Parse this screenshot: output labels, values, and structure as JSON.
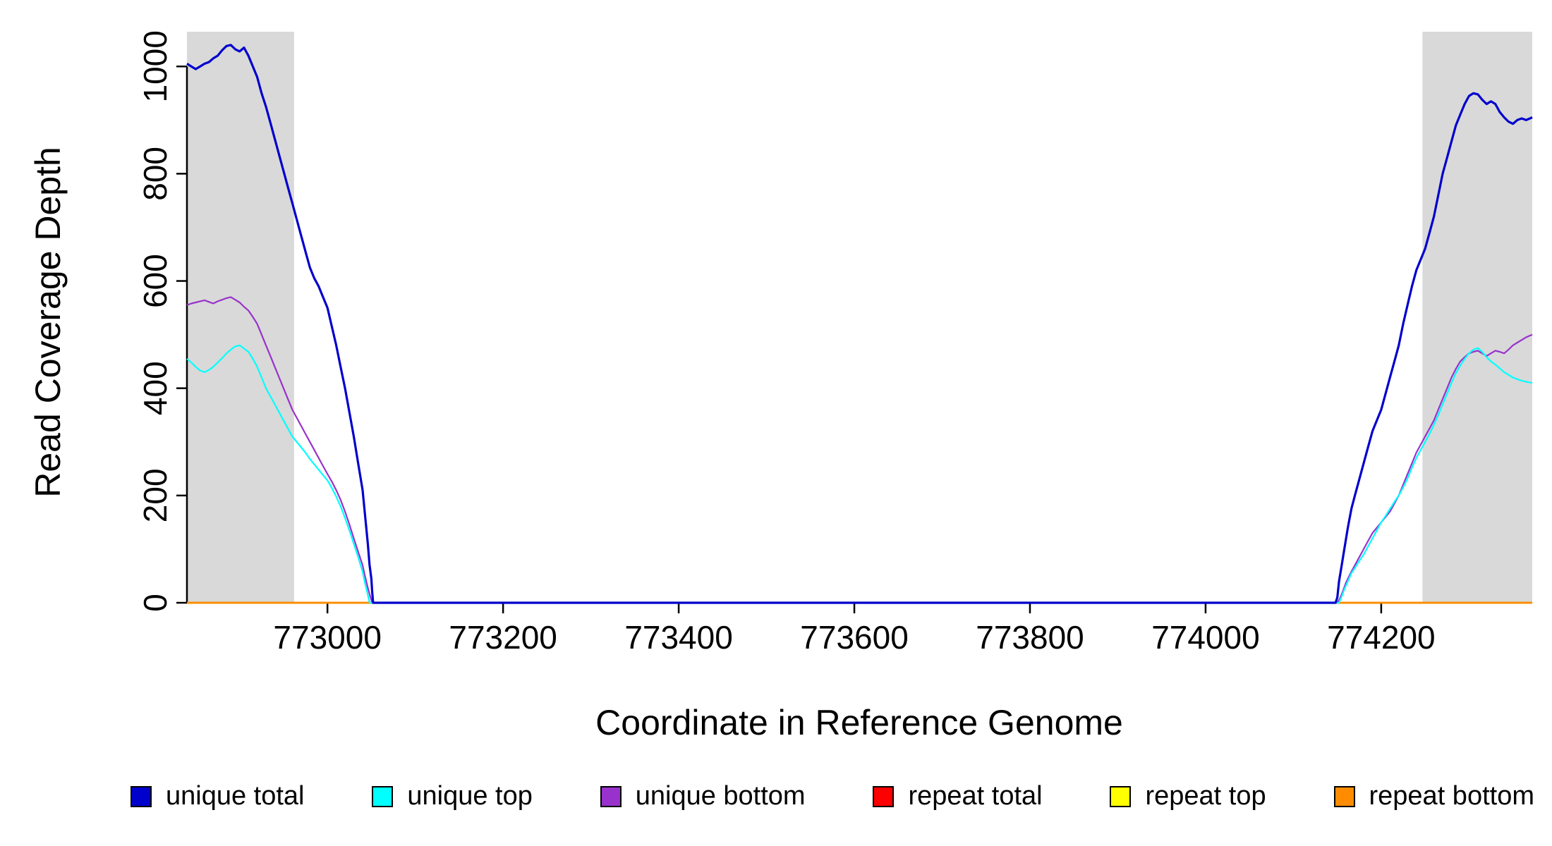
{
  "chart_data": {
    "type": "line",
    "title": "",
    "xlabel": "Coordinate in Reference Genome",
    "ylabel": "Read Coverage Depth",
    "xlim": [
      772840,
      774372
    ],
    "ylim": [
      0,
      1045
    ],
    "xticks": [
      773000,
      773200,
      773400,
      773600,
      773800,
      774000,
      774200
    ],
    "yticks": [
      0,
      200,
      400,
      600,
      800,
      1000
    ],
    "grid": false,
    "legend_position": "bottom",
    "background_color": "#ffffff",
    "shade_color": "#d9d9d9",
    "shaded_regions": [
      {
        "x0": 772840,
        "x1": 772962
      },
      {
        "x0": 774247,
        "x1": 774372
      }
    ],
    "series": [
      {
        "name": "repeat total",
        "color": "#ff0000",
        "width": 2.5,
        "points": [
          [
            772840,
            0
          ],
          [
            774372,
            0
          ]
        ]
      },
      {
        "name": "repeat top",
        "color": "#ffff00",
        "width": 2.5,
        "points": [
          [
            772840,
            0
          ],
          [
            774372,
            0
          ]
        ]
      },
      {
        "name": "repeat bottom",
        "color": "#ff8c00",
        "width": 2.5,
        "points": [
          [
            772840,
            0
          ],
          [
            774372,
            0
          ]
        ]
      },
      {
        "name": "unique bottom",
        "color": "#9932cc",
        "width": 2.2,
        "points": [
          [
            772840,
            555
          ],
          [
            772845,
            558
          ],
          [
            772850,
            560
          ],
          [
            772855,
            562
          ],
          [
            772860,
            564
          ],
          [
            772865,
            561
          ],
          [
            772870,
            558
          ],
          [
            772875,
            562
          ],
          [
            772880,
            565
          ],
          [
            772885,
            568
          ],
          [
            772890,
            570
          ],
          [
            772895,
            565
          ],
          [
            772900,
            560
          ],
          [
            772905,
            552
          ],
          [
            772910,
            545
          ],
          [
            772915,
            533
          ],
          [
            772920,
            520
          ],
          [
            772925,
            500
          ],
          [
            772930,
            480
          ],
          [
            772935,
            460
          ],
          [
            772940,
            440
          ],
          [
            772945,
            420
          ],
          [
            772950,
            400
          ],
          [
            772955,
            380
          ],
          [
            772960,
            360
          ],
          [
            772965,
            345
          ],
          [
            772970,
            330
          ],
          [
            772975,
            315
          ],
          [
            772980,
            300
          ],
          [
            772985,
            285
          ],
          [
            772990,
            270
          ],
          [
            772995,
            255
          ],
          [
            773000,
            240
          ],
          [
            773005,
            226
          ],
          [
            773010,
            210
          ],
          [
            773015,
            192
          ],
          [
            773020,
            170
          ],
          [
            773025,
            146
          ],
          [
            773030,
            120
          ],
          [
            773035,
            95
          ],
          [
            773040,
            70
          ],
          [
            773043,
            48
          ],
          [
            773046,
            28
          ],
          [
            773049,
            10
          ],
          [
            773051,
            0
          ],
          [
            773300,
            0
          ],
          [
            773700,
            0
          ],
          [
            774100,
            0
          ],
          [
            774150,
            0
          ],
          [
            774153,
            8
          ],
          [
            774156,
            20
          ],
          [
            774160,
            38
          ],
          [
            774166,
            58
          ],
          [
            774170,
            70
          ],
          [
            774175,
            85
          ],
          [
            774180,
            100
          ],
          [
            774185,
            115
          ],
          [
            774190,
            130
          ],
          [
            774195,
            140
          ],
          [
            774200,
            150
          ],
          [
            774205,
            160
          ],
          [
            774210,
            170
          ],
          [
            774215,
            185
          ],
          [
            774220,
            200
          ],
          [
            774225,
            220
          ],
          [
            774230,
            240
          ],
          [
            774235,
            260
          ],
          [
            774240,
            280
          ],
          [
            774245,
            295
          ],
          [
            774250,
            310
          ],
          [
            774255,
            325
          ],
          [
            774260,
            340
          ],
          [
            774265,
            360
          ],
          [
            774270,
            380
          ],
          [
            774275,
            400
          ],
          [
            774280,
            420
          ],
          [
            774285,
            436
          ],
          [
            774290,
            450
          ],
          [
            774295,
            458
          ],
          [
            774300,
            465
          ],
          [
            774305,
            468
          ],
          [
            774310,
            470
          ],
          [
            774315,
            465
          ],
          [
            774320,
            460
          ],
          [
            774325,
            465
          ],
          [
            774330,
            470
          ],
          [
            774335,
            468
          ],
          [
            774340,
            465
          ],
          [
            774345,
            472
          ],
          [
            774350,
            480
          ],
          [
            774355,
            485
          ],
          [
            774360,
            490
          ],
          [
            774365,
            495
          ],
          [
            774372,
            500
          ]
        ]
      },
      {
        "name": "unique top",
        "color": "#00ffff",
        "width": 2.2,
        "points": [
          [
            772840,
            455
          ],
          [
            772845,
            448
          ],
          [
            772850,
            440
          ],
          [
            772855,
            433
          ],
          [
            772860,
            430
          ],
          [
            772865,
            434
          ],
          [
            772870,
            440
          ],
          [
            772875,
            448
          ],
          [
            772880,
            456
          ],
          [
            772885,
            465
          ],
          [
            772890,
            472
          ],
          [
            772895,
            478
          ],
          [
            772900,
            480
          ],
          [
            772905,
            474
          ],
          [
            772910,
            468
          ],
          [
            772915,
            455
          ],
          [
            772920,
            440
          ],
          [
            772925,
            420
          ],
          [
            772930,
            400
          ],
          [
            772935,
            385
          ],
          [
            772940,
            370
          ],
          [
            772945,
            355
          ],
          [
            772950,
            340
          ],
          [
            772955,
            325
          ],
          [
            772960,
            310
          ],
          [
            772965,
            300
          ],
          [
            772970,
            290
          ],
          [
            772975,
            280
          ],
          [
            772980,
            268
          ],
          [
            772985,
            258
          ],
          [
            772990,
            248
          ],
          [
            772995,
            238
          ],
          [
            773000,
            228
          ],
          [
            773005,
            214
          ],
          [
            773010,
            198
          ],
          [
            773015,
            180
          ],
          [
            773020,
            158
          ],
          [
            773025,
            135
          ],
          [
            773030,
            110
          ],
          [
            773035,
            85
          ],
          [
            773040,
            58
          ],
          [
            773043,
            35
          ],
          [
            773046,
            15
          ],
          [
            773048,
            0
          ],
          [
            773300,
            0
          ],
          [
            773700,
            0
          ],
          [
            774100,
            0
          ],
          [
            774152,
            0
          ],
          [
            774155,
            12
          ],
          [
            774158,
            25
          ],
          [
            774162,
            40
          ],
          [
            774166,
            55
          ],
          [
            774170,
            65
          ],
          [
            774175,
            78
          ],
          [
            774180,
            90
          ],
          [
            774185,
            105
          ],
          [
            774190,
            120
          ],
          [
            774195,
            135
          ],
          [
            774200,
            150
          ],
          [
            774205,
            162
          ],
          [
            774210,
            175
          ],
          [
            774215,
            188
          ],
          [
            774220,
            200
          ],
          [
            774225,
            215
          ],
          [
            774230,
            232
          ],
          [
            774235,
            252
          ],
          [
            774240,
            270
          ],
          [
            774245,
            285
          ],
          [
            774250,
            300
          ],
          [
            774255,
            315
          ],
          [
            774260,
            332
          ],
          [
            774265,
            350
          ],
          [
            774270,
            370
          ],
          [
            774275,
            390
          ],
          [
            774280,
            410
          ],
          [
            774285,
            428
          ],
          [
            774290,
            442
          ],
          [
            774295,
            455
          ],
          [
            774300,
            465
          ],
          [
            774305,
            472
          ],
          [
            774310,
            475
          ],
          [
            774315,
            468
          ],
          [
            774320,
            458
          ],
          [
            774325,
            450
          ],
          [
            774330,
            444
          ],
          [
            774335,
            437
          ],
          [
            774340,
            430
          ],
          [
            774345,
            425
          ],
          [
            774350,
            420
          ],
          [
            774355,
            417
          ],
          [
            774360,
            414
          ],
          [
            774365,
            412
          ],
          [
            774372,
            410
          ]
        ]
      },
      {
        "name": "unique total",
        "color": "#0000cd",
        "width": 3.2,
        "points": [
          [
            772840,
            1005
          ],
          [
            772845,
            1000
          ],
          [
            772850,
            995
          ],
          [
            772855,
            1000
          ],
          [
            772860,
            1005
          ],
          [
            772865,
            1008
          ],
          [
            772870,
            1015
          ],
          [
            772875,
            1020
          ],
          [
            772880,
            1030
          ],
          [
            772885,
            1038
          ],
          [
            772890,
            1040
          ],
          [
            772895,
            1032
          ],
          [
            772900,
            1028
          ],
          [
            772905,
            1035
          ],
          [
            772910,
            1020
          ],
          [
            772915,
            1000
          ],
          [
            772920,
            980
          ],
          [
            772925,
            950
          ],
          [
            772930,
            925
          ],
          [
            772935,
            895
          ],
          [
            772940,
            865
          ],
          [
            772945,
            835
          ],
          [
            772950,
            805
          ],
          [
            772955,
            775
          ],
          [
            772960,
            745
          ],
          [
            772965,
            715
          ],
          [
            772970,
            685
          ],
          [
            772975,
            655
          ],
          [
            772980,
            625
          ],
          [
            772985,
            605
          ],
          [
            772990,
            590
          ],
          [
            772995,
            570
          ],
          [
            773000,
            550
          ],
          [
            773005,
            515
          ],
          [
            773010,
            480
          ],
          [
            773015,
            440
          ],
          [
            773020,
            400
          ],
          [
            773025,
            355
          ],
          [
            773030,
            310
          ],
          [
            773035,
            260
          ],
          [
            773040,
            210
          ],
          [
            773043,
            160
          ],
          [
            773046,
            110
          ],
          [
            773048,
            70
          ],
          [
            773050,
            45
          ],
          [
            773051,
            20
          ],
          [
            773052,
            0
          ],
          [
            773300,
            0
          ],
          [
            773700,
            0
          ],
          [
            774100,
            0
          ],
          [
            774148,
            0
          ],
          [
            774150,
            10
          ],
          [
            774152,
            40
          ],
          [
            774155,
            70
          ],
          [
            774158,
            100
          ],
          [
            774162,
            140
          ],
          [
            774166,
            175
          ],
          [
            774170,
            200
          ],
          [
            774175,
            230
          ],
          [
            774180,
            260
          ],
          [
            774185,
            290
          ],
          [
            774190,
            320
          ],
          [
            774195,
            340
          ],
          [
            774200,
            360
          ],
          [
            774205,
            390
          ],
          [
            774210,
            420
          ],
          [
            774215,
            450
          ],
          [
            774220,
            480
          ],
          [
            774225,
            520
          ],
          [
            774230,
            555
          ],
          [
            774235,
            590
          ],
          [
            774240,
            620
          ],
          [
            774245,
            640
          ],
          [
            774250,
            660
          ],
          [
            774255,
            690
          ],
          [
            774260,
            720
          ],
          [
            774265,
            760
          ],
          [
            774270,
            800
          ],
          [
            774275,
            830
          ],
          [
            774280,
            860
          ],
          [
            774285,
            890
          ],
          [
            774290,
            910
          ],
          [
            774295,
            930
          ],
          [
            774300,
            945
          ],
          [
            774305,
            950
          ],
          [
            774310,
            948
          ],
          [
            774315,
            938
          ],
          [
            774320,
            930
          ],
          [
            774325,
            935
          ],
          [
            774330,
            930
          ],
          [
            774335,
            915
          ],
          [
            774340,
            905
          ],
          [
            774345,
            897
          ],
          [
            774350,
            893
          ],
          [
            774355,
            900
          ],
          [
            774360,
            903
          ],
          [
            774365,
            900
          ],
          [
            774372,
            905
          ]
        ]
      }
    ],
    "legend": [
      {
        "label": "unique total",
        "color": "#0000cd"
      },
      {
        "label": "unique top",
        "color": "#00ffff"
      },
      {
        "label": "unique bottom",
        "color": "#9932cc"
      },
      {
        "label": "repeat total",
        "color": "#ff0000"
      },
      {
        "label": "repeat top",
        "color": "#ffff00"
      },
      {
        "label": "repeat bottom",
        "color": "#ff8c00"
      }
    ]
  }
}
